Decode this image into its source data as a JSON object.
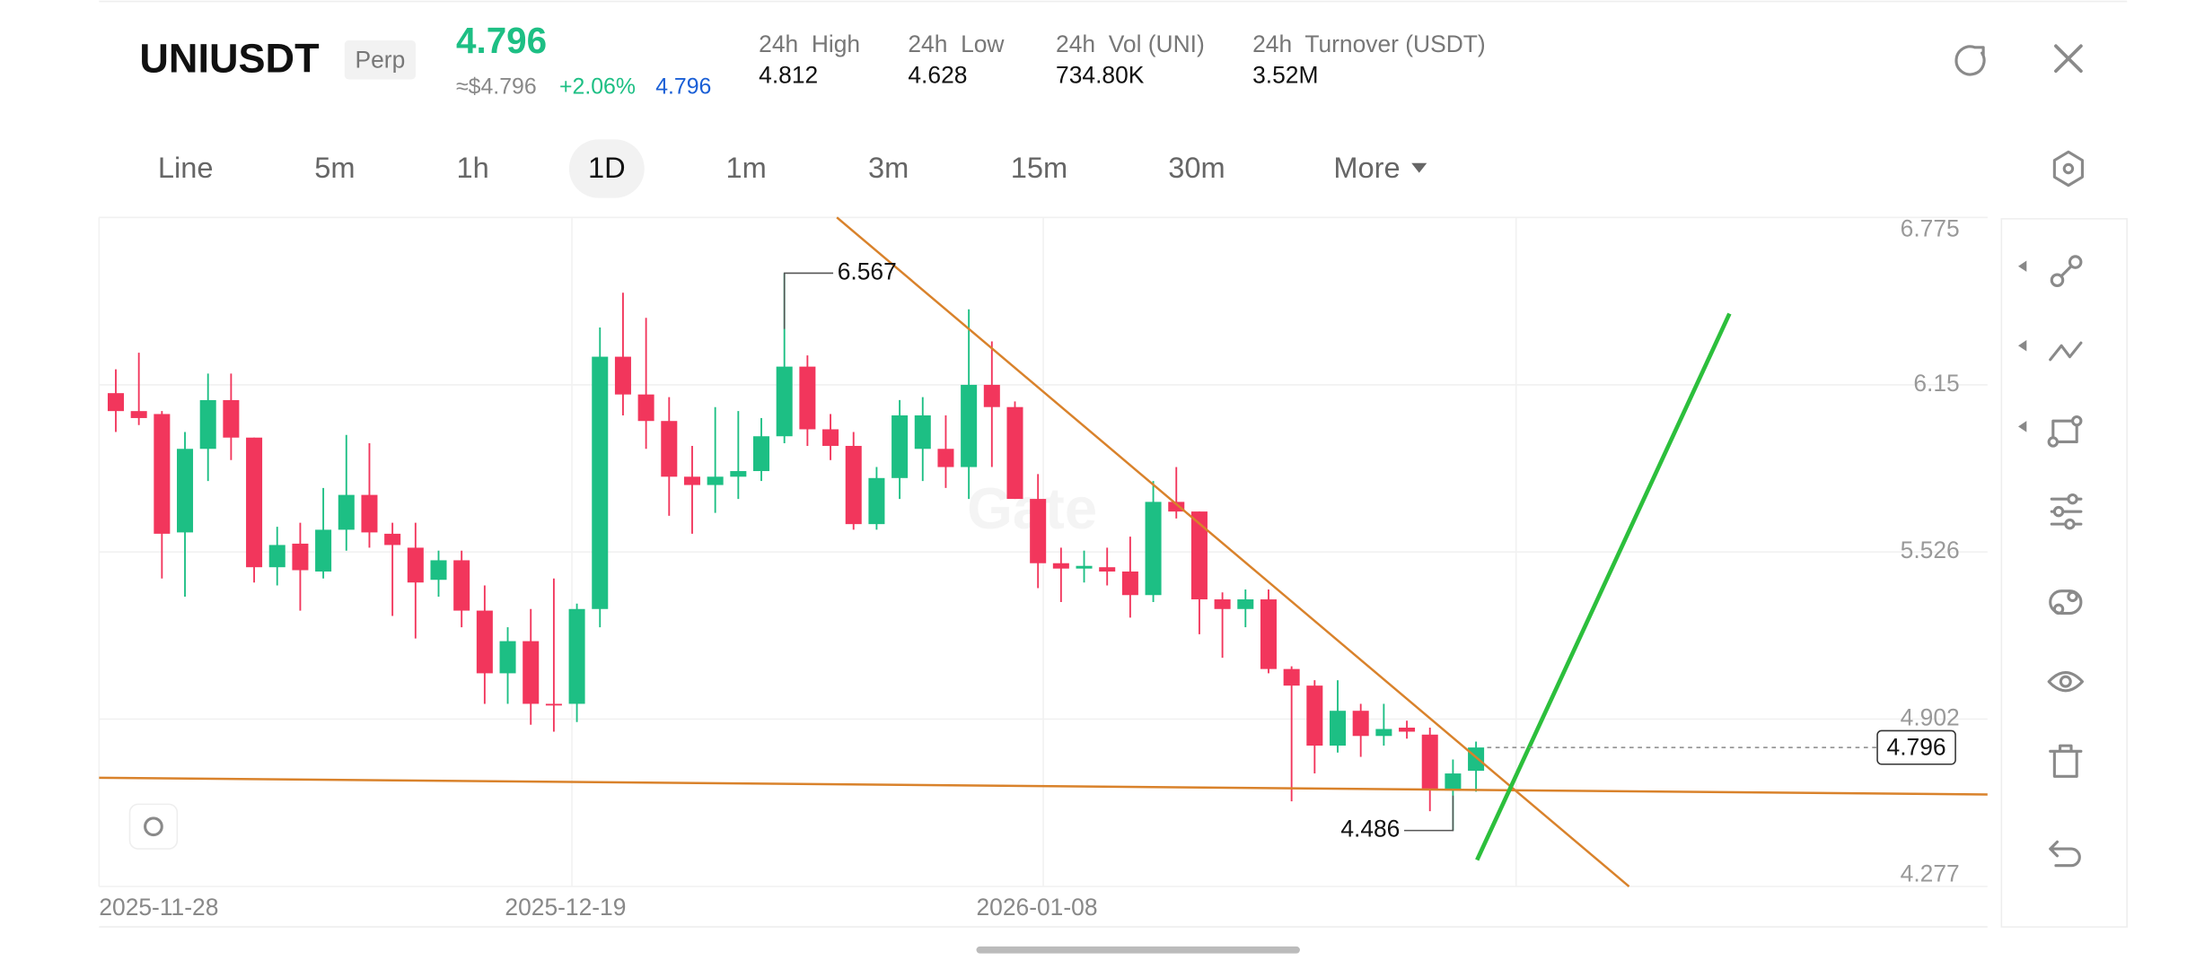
{
  "header": {
    "symbol": "UNIUSDT",
    "badge": "Perp",
    "price": "4.796",
    "approx": "≈$4.796",
    "change": "+2.06%",
    "mark_price": "4.796",
    "stats": [
      {
        "label": "24h  High",
        "value": "4.812"
      },
      {
        "label": "24h  Low",
        "value": "4.628"
      },
      {
        "label": "24h  Vol (UNI)",
        "value": "734.80K"
      },
      {
        "label": "24h  Turnover (USDT)",
        "value": "3.52M"
      }
    ]
  },
  "tabs": [
    "Line",
    "5m",
    "1h",
    "1D",
    "1m",
    "3m",
    "15m",
    "30m",
    "More"
  ],
  "active_tab": "1D",
  "chart_data": {
    "type": "candlestick",
    "up_color": "#1dbf84",
    "down_color": "#f2365c",
    "ylim": [
      4.277,
      6.775
    ],
    "yticks": [
      4.277,
      4.902,
      5.526,
      6.15,
      6.775
    ],
    "x_labels": [
      "2025-11-28",
      "2025-12-19",
      "2026-01-08"
    ],
    "high_label": 6.567,
    "low_label": 4.486,
    "last_price": 4.796,
    "candles": [
      {
        "open": 6.119,
        "high": 6.208,
        "low": 5.974,
        "close": 6.052
      },
      {
        "open": 6.052,
        "high": 6.27,
        "low": 6.0,
        "close": 6.026
      },
      {
        "open": 6.041,
        "high": 6.052,
        "low": 5.427,
        "close": 5.594
      },
      {
        "open": 5.599,
        "high": 5.974,
        "low": 5.359,
        "close": 5.911
      },
      {
        "open": 5.911,
        "high": 6.192,
        "low": 5.791,
        "close": 6.093
      },
      {
        "open": 6.093,
        "high": 6.192,
        "low": 5.869,
        "close": 5.953
      },
      {
        "open": 5.953,
        "high": 5.953,
        "low": 5.412,
        "close": 5.469
      },
      {
        "open": 5.469,
        "high": 5.62,
        "low": 5.401,
        "close": 5.552
      },
      {
        "open": 5.557,
        "high": 5.635,
        "low": 5.307,
        "close": 5.458
      },
      {
        "open": 5.453,
        "high": 5.765,
        "low": 5.427,
        "close": 5.609
      },
      {
        "open": 5.609,
        "high": 5.963,
        "low": 5.531,
        "close": 5.739
      },
      {
        "open": 5.739,
        "high": 5.932,
        "low": 5.542,
        "close": 5.599
      },
      {
        "open": 5.594,
        "high": 5.635,
        "low": 5.287,
        "close": 5.552
      },
      {
        "open": 5.542,
        "high": 5.635,
        "low": 5.203,
        "close": 5.412
      },
      {
        "open": 5.422,
        "high": 5.531,
        "low": 5.359,
        "close": 5.495
      },
      {
        "open": 5.495,
        "high": 5.531,
        "low": 5.245,
        "close": 5.307
      },
      {
        "open": 5.307,
        "high": 5.401,
        "low": 4.959,
        "close": 5.073
      },
      {
        "open": 5.073,
        "high": 5.245,
        "low": 4.959,
        "close": 5.193
      },
      {
        "open": 5.193,
        "high": 5.313,
        "low": 4.881,
        "close": 4.959
      },
      {
        "open": 4.959,
        "high": 5.427,
        "low": 4.855,
        "close": 4.954
      },
      {
        "open": 4.959,
        "high": 5.333,
        "low": 4.891,
        "close": 5.313
      },
      {
        "open": 5.313,
        "high": 6.364,
        "low": 5.245,
        "close": 6.255
      },
      {
        "open": 6.255,
        "high": 6.494,
        "low": 6.036,
        "close": 6.114
      },
      {
        "open": 6.114,
        "high": 6.4,
        "low": 5.911,
        "close": 6.015
      },
      {
        "open": 6.015,
        "high": 6.104,
        "low": 5.661,
        "close": 5.807
      },
      {
        "open": 5.807,
        "high": 5.922,
        "low": 5.594,
        "close": 5.776
      },
      {
        "open": 5.776,
        "high": 6.067,
        "low": 5.672,
        "close": 5.807
      },
      {
        "open": 5.807,
        "high": 6.052,
        "low": 5.724,
        "close": 5.828
      },
      {
        "open": 5.828,
        "high": 6.026,
        "low": 5.791,
        "close": 5.958
      },
      {
        "open": 5.958,
        "high": 6.567,
        "low": 5.932,
        "close": 6.218
      },
      {
        "open": 6.218,
        "high": 6.26,
        "low": 5.922,
        "close": 5.984
      },
      {
        "open": 5.984,
        "high": 6.041,
        "low": 5.869,
        "close": 5.922
      },
      {
        "open": 5.922,
        "high": 5.974,
        "low": 5.609,
        "close": 5.63
      },
      {
        "open": 5.63,
        "high": 5.843,
        "low": 5.609,
        "close": 5.802
      },
      {
        "open": 5.802,
        "high": 6.093,
        "low": 5.724,
        "close": 6.036
      },
      {
        "open": 5.911,
        "high": 6.104,
        "low": 5.791,
        "close": 6.036
      },
      {
        "open": 5.911,
        "high": 6.036,
        "low": 5.765,
        "close": 5.843
      },
      {
        "open": 5.843,
        "high": 6.432,
        "low": 5.724,
        "close": 6.15
      },
      {
        "open": 6.15,
        "high": 6.312,
        "low": 5.843,
        "close": 6.067
      },
      {
        "open": 6.067,
        "high": 6.088,
        "low": 5.724,
        "close": 5.724
      },
      {
        "open": 5.724,
        "high": 5.817,
        "low": 5.391,
        "close": 5.484
      },
      {
        "open": 5.484,
        "high": 5.542,
        "low": 5.339,
        "close": 5.464
      },
      {
        "open": 5.464,
        "high": 5.531,
        "low": 5.412,
        "close": 5.474
      },
      {
        "open": 5.469,
        "high": 5.542,
        "low": 5.401,
        "close": 5.453
      },
      {
        "open": 5.453,
        "high": 5.583,
        "low": 5.281,
        "close": 5.365
      },
      {
        "open": 5.365,
        "high": 5.791,
        "low": 5.339,
        "close": 5.713
      },
      {
        "open": 5.713,
        "high": 5.843,
        "low": 5.651,
        "close": 5.677
      },
      {
        "open": 5.677,
        "high": 5.677,
        "low": 5.219,
        "close": 5.349
      },
      {
        "open": 5.349,
        "high": 5.375,
        "low": 5.131,
        "close": 5.313
      },
      {
        "open": 5.313,
        "high": 5.386,
        "low": 5.245,
        "close": 5.349
      },
      {
        "open": 5.349,
        "high": 5.386,
        "low": 5.073,
        "close": 5.089
      },
      {
        "open": 5.089,
        "high": 5.099,
        "low": 4.595,
        "close": 5.027
      },
      {
        "open": 5.027,
        "high": 5.047,
        "low": 4.699,
        "close": 4.803
      },
      {
        "open": 4.803,
        "high": 5.047,
        "low": 4.777,
        "close": 4.933
      },
      {
        "open": 4.933,
        "high": 4.959,
        "low": 4.761,
        "close": 4.839
      },
      {
        "open": 4.839,
        "high": 4.959,
        "low": 4.803,
        "close": 4.865
      },
      {
        "open": 4.87,
        "high": 4.896,
        "low": 4.829,
        "close": 4.855
      },
      {
        "open": 4.844,
        "high": 4.87,
        "low": 4.558,
        "close": 4.636
      },
      {
        "open": 4.636,
        "high": 4.751,
        "low": 4.486,
        "close": 4.699
      },
      {
        "open": 4.709,
        "high": 4.818,
        "low": 4.631,
        "close": 4.796
      }
    ]
  }
}
